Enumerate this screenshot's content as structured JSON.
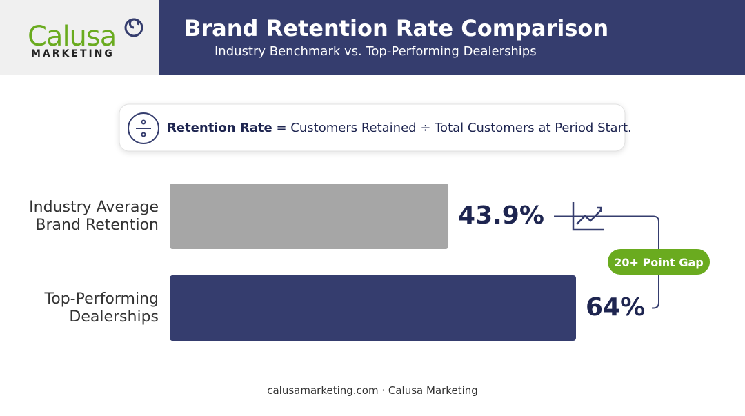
{
  "logo": {
    "name": "Calusa",
    "tagline": "MARKETING"
  },
  "chart_data": {
    "type": "bar",
    "orientation": "horizontal",
    "title": "Brand Retention Rate Comparison",
    "subtitle": "Industry Benchmark vs. Top-Performing Dealerships",
    "formula": {
      "term": "Retention Rate",
      "definition": "= Customers Retained ÷ Total Customers at Period Start."
    },
    "categories": [
      "Industry Average Brand Retention",
      "Top-Performing Dealerships"
    ],
    "values": [
      43.9,
      64
    ],
    "value_labels": [
      "43.9%",
      "64%"
    ],
    "colors": [
      "#a6a6a6",
      "#353d6e"
    ],
    "annotation": "20+ Point Gap"
  },
  "footer": "calusamarketing.com · Calusa Marketing"
}
